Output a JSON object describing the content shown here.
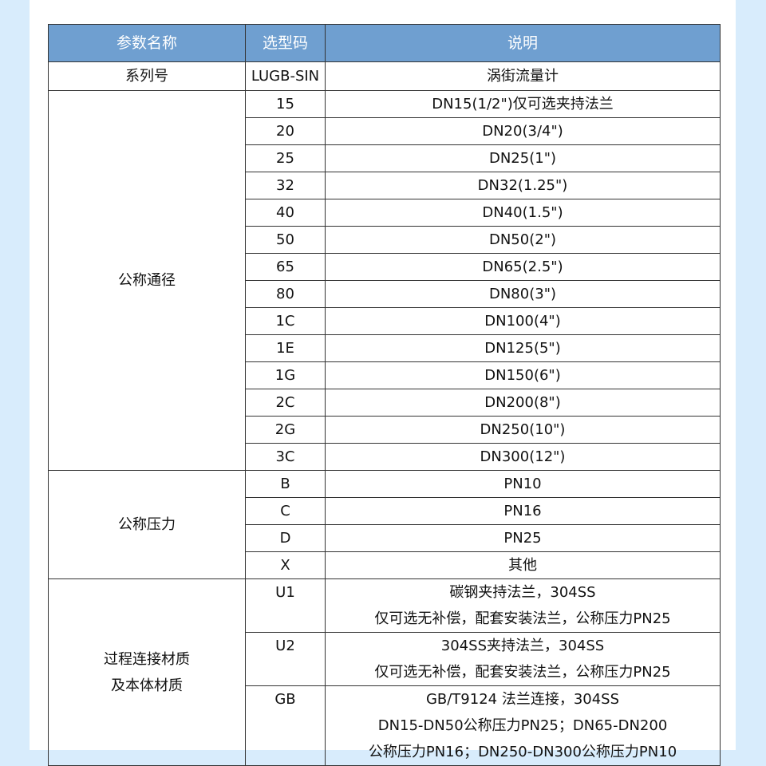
{
  "colors": {
    "header_bg": "#6f9fd0",
    "page_bg": "#d8ecfc"
  },
  "headers": [
    "参数名称",
    "选型码",
    "说明"
  ],
  "series": {
    "name": "系列号",
    "code": "LUGB-SIN",
    "desc": "涡街流量计"
  },
  "diameter": {
    "name": "公称通径",
    "rows": [
      {
        "code": "15",
        "desc": "DN15(1/2\")仅可选夹持法兰"
      },
      {
        "code": "20",
        "desc": "DN20(3/4\")"
      },
      {
        "code": "25",
        "desc": "DN25(1\")"
      },
      {
        "code": "32",
        "desc": "DN32(1.25\")"
      },
      {
        "code": "40",
        "desc": "DN40(1.5\")"
      },
      {
        "code": "50",
        "desc": "DN50(2\")"
      },
      {
        "code": "65",
        "desc": "DN65(2.5\")"
      },
      {
        "code": "80",
        "desc": "DN80(3\")"
      },
      {
        "code": "1C",
        "desc": "DN100(4\")"
      },
      {
        "code": "1E",
        "desc": "DN125(5\")"
      },
      {
        "code": "1G",
        "desc": "DN150(6\")"
      },
      {
        "code": "2C",
        "desc": "DN200(8\")"
      },
      {
        "code": "2G",
        "desc": "DN250(10\")"
      },
      {
        "code": "3C",
        "desc": "DN300(12\")"
      }
    ]
  },
  "pressure": {
    "name": "公称压力",
    "rows": [
      {
        "code": "B",
        "desc": "PN10"
      },
      {
        "code": "C",
        "desc": "PN16"
      },
      {
        "code": "D",
        "desc": "PN25"
      },
      {
        "code": "X",
        "desc": "其他"
      }
    ]
  },
  "material": {
    "name_line1": "过程连接材质",
    "name_line2": "及本体材质",
    "rows": [
      {
        "code": "U1",
        "lines": [
          "碳钢夹持法兰，304SS",
          "仅可选无补偿，配套安装法兰，公称压力PN25"
        ]
      },
      {
        "code": "U2",
        "lines": [
          "304SS夹持法兰，304SS",
          "仅可选无补偿，配套安装法兰，公称压力PN25"
        ]
      },
      {
        "code": "GB",
        "lines": [
          "GB/T9124 法兰连接，304SS",
          "DN15-DN50公称压力PN25；DN65-DN200",
          "公称压力PN16；DN250-DN300公称压力PN10"
        ]
      }
    ]
  }
}
